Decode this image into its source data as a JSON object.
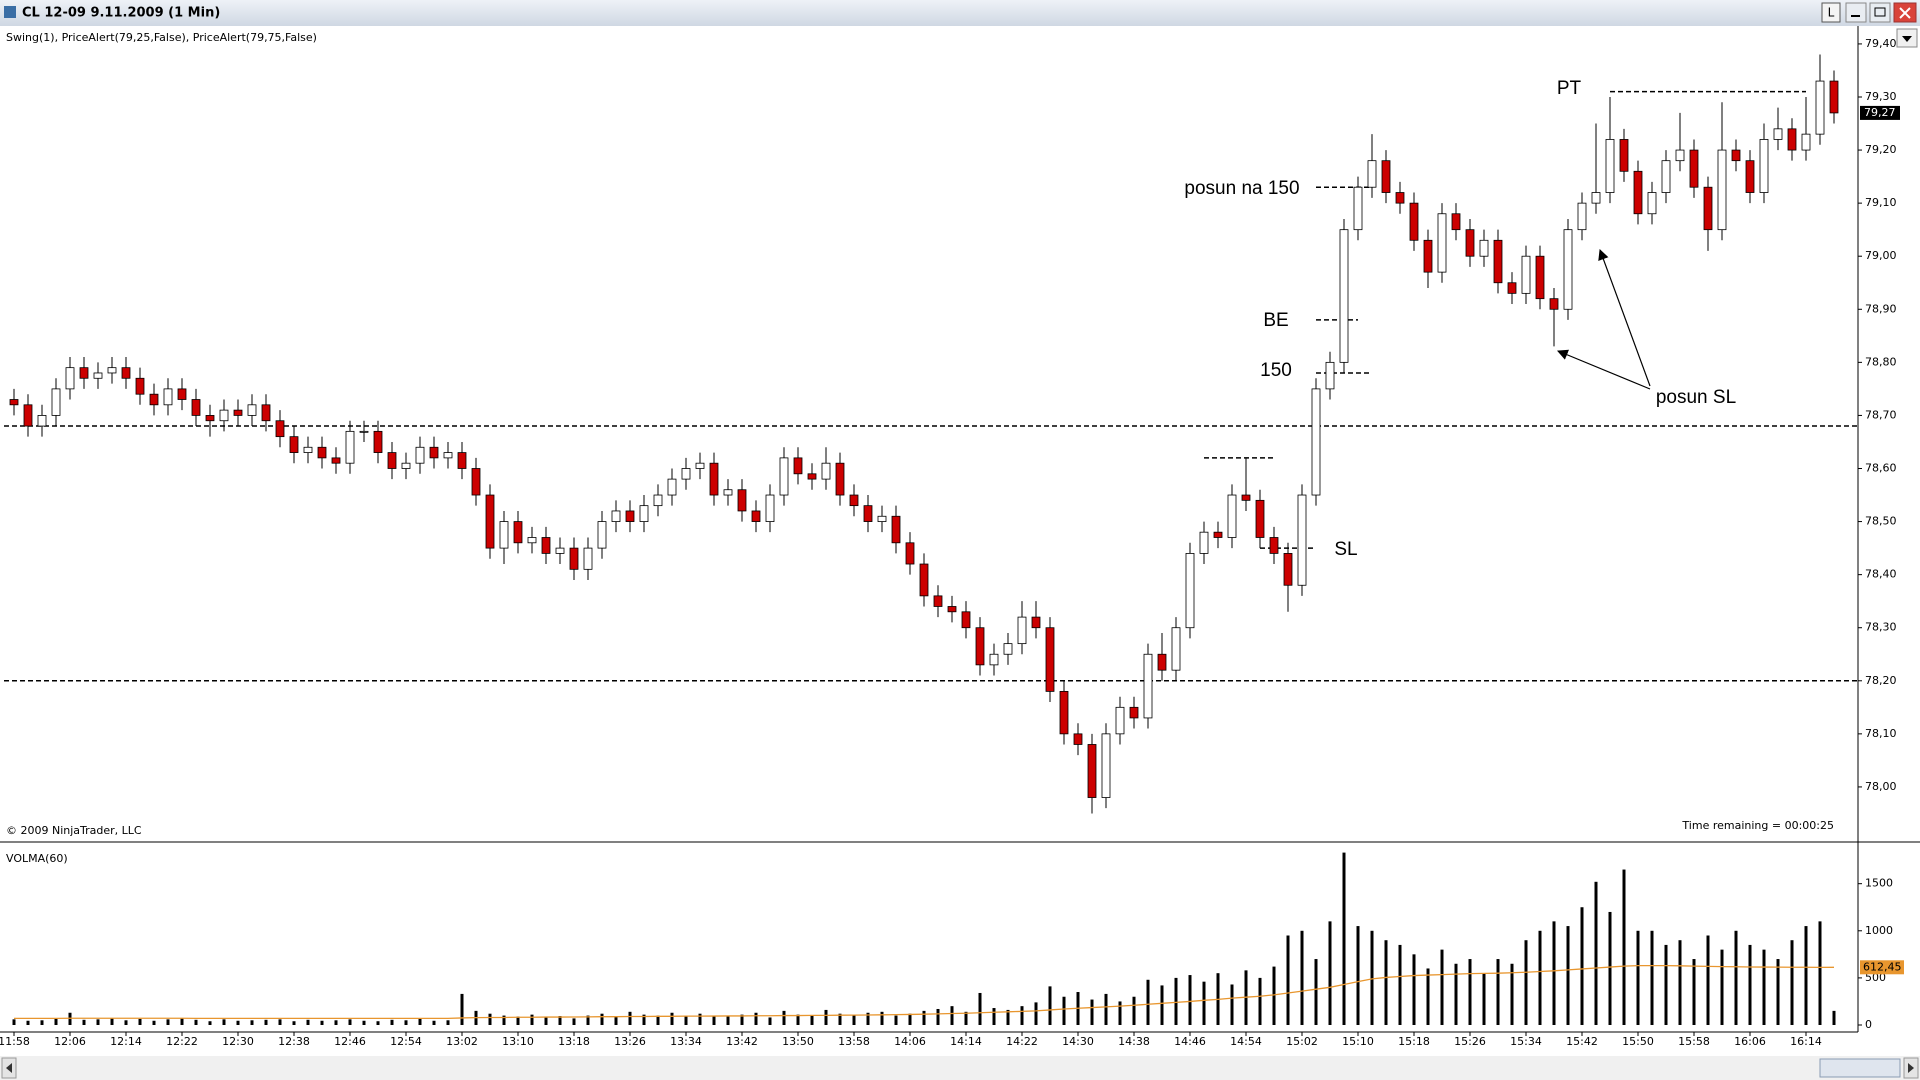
{
  "window": {
    "button": "L"
  },
  "chart_data": {
    "type": "candlestick",
    "title": "CL 12-09  9.11.2009 (1 Min)",
    "subtitle": "Swing(1), PriceAlert(79,25,False), PriceAlert(79,75,False)",
    "copyright": "© 2009 NinjaTrader, LLC",
    "time_remaining": "Time remaining = 00:00:25",
    "categories": [
      "11:58",
      null,
      null,
      null,
      "12:06",
      null,
      null,
      null,
      "12:14",
      null,
      null,
      null,
      "12:22",
      null,
      null,
      null,
      "12:30",
      null,
      null,
      null,
      "12:38",
      null,
      null,
      null,
      "12:46",
      null,
      null,
      null,
      "12:54",
      null,
      null,
      null,
      "13:02",
      null,
      null,
      null,
      "13:10",
      null,
      null,
      null,
      "13:18",
      null,
      null,
      null,
      "13:26",
      null,
      null,
      null,
      "13:34",
      null,
      null,
      null,
      "13:42",
      null,
      null,
      null,
      "13:50",
      null,
      null,
      null,
      "13:58",
      null,
      null,
      null,
      "14:06",
      null,
      null,
      null,
      "14:14",
      null,
      null,
      null,
      "14:22",
      null,
      null,
      null,
      "14:30",
      null,
      null,
      null,
      "14:38",
      null,
      null,
      null,
      "14:46",
      null,
      null,
      null,
      "14:54",
      null,
      null,
      null,
      "15:02",
      null,
      null,
      null,
      "15:10",
      null,
      null,
      null,
      "15:18",
      null,
      null,
      null,
      "15:26",
      null,
      null,
      null,
      "15:34",
      null,
      null,
      null,
      "15:42",
      null,
      null,
      null,
      "15:50",
      null,
      null,
      null,
      "15:58",
      null,
      null,
      null,
      "16:06",
      null,
      null,
      null,
      "16:14",
      null,
      null
    ],
    "open": [
      78.73,
      78.72,
      78.68,
      78.7,
      78.75,
      78.79,
      78.77,
      78.78,
      78.79,
      78.77,
      78.74,
      78.72,
      78.75,
      78.73,
      78.7,
      78.69,
      78.71,
      78.7,
      78.72,
      78.69,
      78.66,
      78.63,
      78.64,
      78.62,
      78.61,
      78.67,
      78.67,
      78.63,
      78.6,
      78.61,
      78.64,
      78.62,
      78.63,
      78.6,
      78.55,
      78.45,
      78.5,
      78.46,
      78.47,
      78.44,
      78.45,
      78.41,
      78.45,
      78.5,
      78.52,
      78.5,
      78.53,
      78.55,
      78.58,
      78.6,
      78.61,
      78.55,
      78.56,
      78.52,
      78.5,
      78.55,
      78.62,
      78.59,
      78.58,
      78.61,
      78.55,
      78.53,
      78.5,
      78.51,
      78.46,
      78.42,
      78.36,
      78.34,
      78.33,
      78.3,
      78.23,
      78.25,
      78.27,
      78.32,
      78.3,
      78.18,
      78.1,
      78.08,
      77.98,
      78.1,
      78.15,
      78.13,
      78.25,
      78.22,
      78.3,
      78.44,
      78.48,
      78.47,
      78.55,
      78.54,
      78.47,
      78.44,
      78.38,
      78.55,
      78.75,
      78.8,
      79.05,
      79.13,
      79.18,
      79.12,
      79.1,
      79.03,
      78.97,
      79.08,
      79.05,
      79.0,
      79.03,
      78.95,
      78.93,
      79.0,
      78.92,
      78.9,
      79.05,
      79.1,
      79.12,
      79.22,
      79.16,
      79.08,
      79.12,
      79.18,
      79.2,
      79.13,
      79.05,
      79.2,
      79.18,
      79.12,
      79.22,
      79.24,
      79.2,
      79.23,
      79.33
    ],
    "high": [
      78.75,
      78.74,
      78.72,
      78.77,
      78.81,
      78.81,
      78.8,
      78.81,
      78.81,
      78.79,
      78.76,
      78.77,
      78.77,
      78.75,
      78.72,
      78.73,
      78.73,
      78.74,
      78.74,
      78.71,
      78.68,
      78.66,
      78.66,
      78.64,
      78.69,
      78.69,
      78.69,
      78.65,
      78.63,
      78.66,
      78.66,
      78.65,
      78.65,
      78.62,
      78.57,
      78.52,
      78.52,
      78.49,
      78.49,
      78.47,
      78.47,
      78.47,
      78.52,
      78.54,
      78.54,
      78.55,
      78.57,
      78.6,
      78.62,
      78.63,
      78.63,
      78.58,
      78.58,
      78.54,
      78.57,
      78.64,
      78.64,
      78.61,
      78.64,
      78.63,
      78.57,
      78.55,
      78.53,
      78.53,
      78.48,
      78.44,
      78.38,
      78.36,
      78.35,
      78.32,
      78.27,
      78.29,
      78.35,
      78.35,
      78.32,
      78.2,
      78.12,
      78.1,
      78.12,
      78.17,
      78.17,
      78.27,
      78.29,
      78.32,
      78.46,
      78.5,
      78.5,
      78.57,
      78.62,
      78.56,
      78.49,
      78.46,
      78.57,
      78.77,
      78.82,
      79.07,
      79.15,
      79.23,
      79.2,
      79.14,
      79.12,
      79.05,
      79.1,
      79.1,
      79.07,
      79.05,
      79.05,
      78.97,
      79.02,
      79.02,
      78.94,
      79.07,
      79.12,
      79.25,
      79.3,
      79.24,
      79.18,
      79.14,
      79.2,
      79.27,
      79.22,
      79.15,
      79.29,
      79.22,
      79.2,
      79.25,
      79.28,
      79.26,
      79.3,
      79.38,
      79.35
    ],
    "low": [
      78.7,
      78.66,
      78.66,
      78.68,
      78.73,
      78.75,
      78.75,
      78.76,
      78.75,
      78.72,
      78.7,
      78.7,
      78.71,
      78.68,
      78.66,
      78.67,
      78.68,
      78.68,
      78.67,
      78.64,
      78.61,
      78.61,
      78.6,
      78.59,
      78.59,
      78.65,
      78.61,
      78.58,
      78.58,
      78.59,
      78.6,
      78.6,
      78.58,
      78.53,
      78.43,
      78.42,
      78.44,
      78.44,
      78.42,
      78.42,
      78.39,
      78.39,
      78.43,
      78.48,
      78.48,
      78.48,
      78.51,
      78.53,
      78.56,
      78.58,
      78.53,
      78.53,
      78.5,
      78.48,
      78.48,
      78.53,
      78.57,
      78.56,
      78.56,
      78.53,
      78.51,
      78.48,
      78.48,
      78.44,
      78.4,
      78.34,
      78.32,
      78.31,
      78.28,
      78.21,
      78.21,
      78.23,
      78.25,
      78.28,
      78.16,
      78.08,
      78.06,
      77.95,
      77.96,
      78.08,
      78.11,
      78.11,
      78.2,
      78.2,
      78.28,
      78.42,
      78.45,
      78.45,
      78.52,
      78.45,
      78.42,
      78.33,
      78.36,
      78.53,
      78.73,
      78.78,
      79.03,
      79.11,
      79.1,
      79.08,
      79.01,
      78.94,
      78.95,
      79.03,
      78.98,
      78.98,
      78.93,
      78.91,
      78.91,
      78.9,
      78.83,
      78.88,
      79.03,
      79.08,
      79.1,
      79.14,
      79.06,
      79.06,
      79.1,
      79.16,
      79.11,
      79.01,
      79.03,
      79.16,
      79.1,
      79.1,
      79.2,
      79.18,
      79.18,
      79.21,
      79.25
    ],
    "close": [
      78.72,
      78.68,
      78.7,
      78.75,
      78.79,
      78.77,
      78.78,
      78.79,
      78.77,
      78.74,
      78.72,
      78.75,
      78.73,
      78.7,
      78.69,
      78.71,
      78.7,
      78.72,
      78.69,
      78.66,
      78.63,
      78.64,
      78.62,
      78.61,
      78.67,
      78.67,
      78.63,
      78.6,
      78.61,
      78.64,
      78.62,
      78.63,
      78.6,
      78.55,
      78.45,
      78.5,
      78.46,
      78.47,
      78.44,
      78.45,
      78.41,
      78.45,
      78.5,
      78.52,
      78.5,
      78.53,
      78.55,
      78.58,
      78.6,
      78.61,
      78.55,
      78.56,
      78.52,
      78.5,
      78.55,
      78.62,
      78.59,
      78.58,
      78.61,
      78.55,
      78.53,
      78.5,
      78.51,
      78.46,
      78.42,
      78.36,
      78.34,
      78.33,
      78.3,
      78.23,
      78.25,
      78.27,
      78.32,
      78.3,
      78.18,
      78.1,
      78.08,
      77.98,
      78.1,
      78.15,
      78.13,
      78.25,
      78.22,
      78.3,
      78.44,
      78.48,
      78.47,
      78.55,
      78.54,
      78.47,
      78.44,
      78.38,
      78.55,
      78.75,
      78.8,
      79.05,
      79.13,
      79.18,
      79.12,
      79.1,
      79.03,
      78.97,
      79.08,
      79.05,
      79.0,
      79.03,
      78.95,
      78.93,
      79.0,
      78.92,
      78.9,
      79.05,
      79.1,
      79.12,
      79.22,
      79.16,
      79.08,
      79.12,
      79.18,
      79.2,
      79.13,
      79.05,
      79.2,
      79.18,
      79.12,
      79.22,
      79.24,
      79.2,
      79.23,
      79.33,
      79.27
    ],
    "up_color": "#ffffff",
    "down_color": "#cc0000",
    "ylim": [
      77.9,
      79.43
    ],
    "yticks": [
      {
        "value": 78.0,
        "label": "78,00"
      },
      {
        "value": 78.1,
        "label": "78,10"
      },
      {
        "value": 78.2,
        "label": "78,20"
      },
      {
        "value": 78.3,
        "label": "78,30"
      },
      {
        "value": 78.4,
        "label": "78,40"
      },
      {
        "value": 78.5,
        "label": "78,50"
      },
      {
        "value": 78.6,
        "label": "78,60"
      },
      {
        "value": 78.7,
        "label": "78,70"
      },
      {
        "value": 78.8,
        "label": "78,80"
      },
      {
        "value": 78.9,
        "label": "78,90"
      },
      {
        "value": 79.0,
        "label": "79,00"
      },
      {
        "value": 79.1,
        "label": "79,10"
      },
      {
        "value": 79.2,
        "label": "79,20"
      },
      {
        "value": 79.3,
        "label": "79,30"
      },
      {
        "value": 79.4,
        "label": "79,40"
      }
    ],
    "last_label": {
      "value": 79.27,
      "label": "79,27"
    },
    "levels": [
      78.68,
      78.2
    ],
    "segments": [
      79.31,
      79.13,
      78.88,
      78.78,
      78.45,
      78.62
    ],
    "annotations": [
      "PT",
      "posun na 150",
      "BE",
      "150",
      "SL",
      "posun SL"
    ],
    "volume": {
      "title": "VOLMA(60)",
      "color": "#000000",
      "values": [
        60,
        45,
        50,
        70,
        130,
        55,
        60,
        70,
        50,
        65,
        45,
        60,
        70,
        55,
        40,
        60,
        45,
        50,
        55,
        60,
        40,
        55,
        45,
        50,
        60,
        45,
        40,
        55,
        50,
        65,
        45,
        50,
        330,
        150,
        120,
        100,
        90,
        110,
        80,
        95,
        70,
        100,
        120,
        90,
        140,
        110,
        100,
        130,
        90,
        120,
        100,
        90,
        110,
        130,
        80,
        150,
        110,
        100,
        160,
        120,
        110,
        130,
        140,
        100,
        120,
        150,
        170,
        200,
        140,
        340,
        180,
        160,
        200,
        240,
        410,
        300,
        350,
        270,
        330,
        250,
        300,
        480,
        420,
        500,
        530,
        460,
        550,
        430,
        580,
        500,
        620,
        950,
        1000,
        700,
        1100,
        1830,
        1050,
        1000,
        900,
        850,
        750,
        600,
        800,
        650,
        700,
        550,
        700,
        650,
        900,
        1000,
        1100,
        1050,
        1250,
        1520,
        1200,
        1650,
        1000,
        1000,
        850,
        900,
        700,
        950,
        800,
        1000,
        850,
        800,
        700,
        900,
        1050,
        1100,
        150
      ],
      "ma": {
        "color": "#e8962e",
        "values": [
          70,
          70,
          70,
          70,
          72,
          72,
          72,
          72,
          72,
          72,
          72,
          72,
          72,
          70,
          70,
          70,
          70,
          70,
          70,
          70,
          70,
          70,
          70,
          70,
          70,
          70,
          70,
          70,
          70,
          70,
          70,
          70,
          75,
          78,
          80,
          80,
          82,
          82,
          84,
          84,
          85,
          86,
          88,
          88,
          90,
          90,
          92,
          92,
          94,
          94,
          95,
          96,
          96,
          98,
          98,
          100,
          100,
          102,
          102,
          104,
          105,
          106,
          108,
          110,
          112,
          115,
          118,
          122,
          125,
          130,
          135,
          140,
          145,
          150,
          160,
          170,
          178,
          185,
          192,
          200,
          210,
          220,
          230,
          240,
          250,
          262,
          272,
          285,
          295,
          305,
          320,
          340,
          360,
          380,
          400,
          430,
          460,
          490,
          505,
          515,
          525,
          530,
          535,
          540,
          545,
          548,
          550,
          555,
          560,
          568,
          575,
          585,
          595,
          605,
          615,
          625,
          630,
          630,
          630,
          628,
          625,
          622,
          620,
          618,
          616,
          615,
          614,
          613,
          613,
          612,
          612.45
        ],
        "last_label": {
          "value": 612.45,
          "label": "612,45"
        }
      },
      "ylim": [
        0,
        1900
      ],
      "yticks": [
        0,
        500,
        1000,
        1500
      ]
    }
  }
}
